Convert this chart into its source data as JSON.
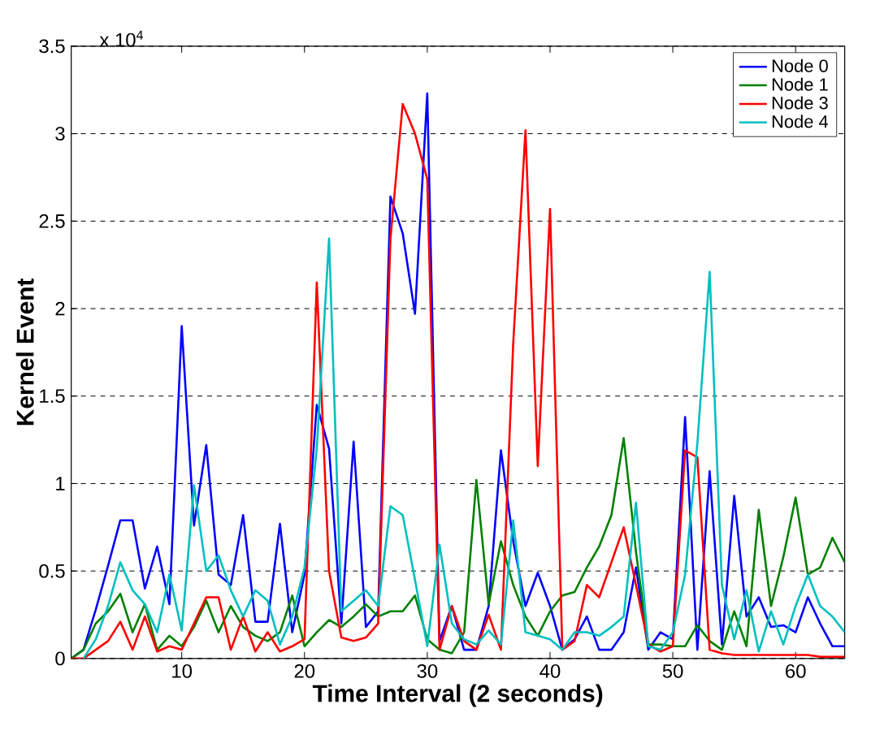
{
  "chart_data": {
    "type": "line",
    "xlabel": "Time Interval (2 seconds)",
    "ylabel": "Kernel Event",
    "annotations": [
      "x 10$^{4}$"
    ],
    "x": [
      1,
      2,
      3,
      4,
      5,
      6,
      7,
      8,
      9,
      10,
      11,
      12,
      13,
      14,
      15,
      16,
      17,
      18,
      19,
      20,
      21,
      22,
      23,
      24,
      25,
      26,
      27,
      28,
      29,
      30,
      31,
      32,
      33,
      34,
      35,
      36,
      37,
      38,
      39,
      40,
      41,
      42,
      43,
      44,
      45,
      46,
      47,
      48,
      49,
      50,
      51,
      52,
      53,
      54,
      55,
      56,
      57,
      58,
      59,
      60,
      61,
      62,
      63,
      64
    ],
    "series": [
      {
        "name": "Node 0",
        "color": "#0000ff",
        "values": [
          0,
          0.05,
          0.28,
          0.53,
          0.79,
          0.79,
          0.4,
          0.64,
          0.31,
          1.9,
          0.76,
          1.22,
          0.48,
          0.42,
          0.82,
          0.21,
          0.21,
          0.77,
          0.15,
          0.48,
          1.45,
          1.2,
          0.2,
          1.24,
          0.18,
          0.27,
          2.64,
          2.43,
          1.97,
          3.23,
          0.1,
          0.3,
          0.05,
          0.05,
          0.3,
          1.19,
          0.67,
          0.3,
          0.49,
          0.3,
          0.05,
          0.11,
          0.24,
          0.05,
          0.05,
          0.15,
          0.52,
          0.05,
          0.15,
          0.11,
          1.38,
          0.05,
          1.07,
          0.08,
          0.93,
          0.24,
          0.35,
          0.18,
          0.19,
          0.15,
          0.35,
          0.2,
          0.07,
          0.07
        ]
      },
      {
        "name": "Node 1",
        "color": "#008000",
        "values": [
          0,
          0.05,
          0.2,
          0.27,
          0.37,
          0.15,
          0.31,
          0.05,
          0.13,
          0.07,
          0.18,
          0.33,
          0.15,
          0.3,
          0.18,
          0.13,
          0.1,
          0.15,
          0.36,
          0.07,
          0.15,
          0.22,
          0.18,
          0.24,
          0.31,
          0.24,
          0.27,
          0.27,
          0.36,
          0.11,
          0.05,
          0.03,
          0.15,
          1.02,
          0.31,
          0.67,
          0.42,
          0.24,
          0.13,
          0.27,
          0.36,
          0.38,
          0.52,
          0.64,
          0.82,
          1.26,
          0.61,
          0.08,
          0.08,
          0.07,
          0.07,
          0.19,
          0.1,
          0.05,
          0.27,
          0.07,
          0.85,
          0.3,
          0.58,
          0.92,
          0.48,
          0.52,
          0.69,
          0.55
        ]
      },
      {
        "name": "Node 3",
        "color": "#ff0000",
        "values": [
          0,
          0,
          0.05,
          0.1,
          0.21,
          0.05,
          0.24,
          0.04,
          0.07,
          0.05,
          0.2,
          0.35,
          0.35,
          0.05,
          0.24,
          0.04,
          0.15,
          0.04,
          0.07,
          0.11,
          2.15,
          0.5,
          0.12,
          0.1,
          0.12,
          0.2,
          2.4,
          3.17,
          3.0,
          2.74,
          0.05,
          0.3,
          0.1,
          0.05,
          0.25,
          0.05,
          1.8,
          3.02,
          1.1,
          2.57,
          0.05,
          0.1,
          0.42,
          0.35,
          0.55,
          0.75,
          0.42,
          0.08,
          0.04,
          0.07,
          1.19,
          1.15,
          0.05,
          0.03,
          0.02,
          0.02,
          0.02,
          0.02,
          0.02,
          0.02,
          0.02,
          0.01,
          0.01,
          0.01
        ]
      },
      {
        "name": "Node 4",
        "color": "#00bfbf",
        "values": [
          null,
          0,
          0.11,
          0.3,
          0.55,
          0.39,
          0.31,
          0.15,
          0.48,
          0.16,
          0.99,
          0.5,
          0.59,
          0.39,
          0.24,
          0.39,
          0.33,
          0.08,
          0.24,
          0.52,
          1.2,
          2.4,
          0.27,
          0.33,
          0.39,
          0.3,
          0.87,
          0.82,
          0.45,
          0.07,
          0.65,
          0.2,
          0.11,
          0.08,
          0.16,
          0.08,
          0.79,
          0.15,
          0.13,
          0.11,
          0.05,
          0.15,
          0.15,
          0.13,
          0.18,
          0.24,
          0.89,
          0.07,
          0.05,
          0.15,
          0.48,
          1.23,
          2.21,
          0.42,
          0.11,
          0.39,
          0.04,
          0.27,
          0.08,
          0.3,
          0.48,
          0.3,
          0.24,
          0.15
        ]
      }
    ],
    "xlim": [
      1,
      64
    ],
    "ylim": [
      0,
      3.5
    ],
    "xticks": [
      10,
      20,
      30,
      40,
      50,
      60
    ],
    "yticks": [
      0,
      0.5,
      1,
      1.5,
      2,
      2.5,
      3,
      3.5
    ],
    "grid": "y",
    "legend": "top right"
  }
}
